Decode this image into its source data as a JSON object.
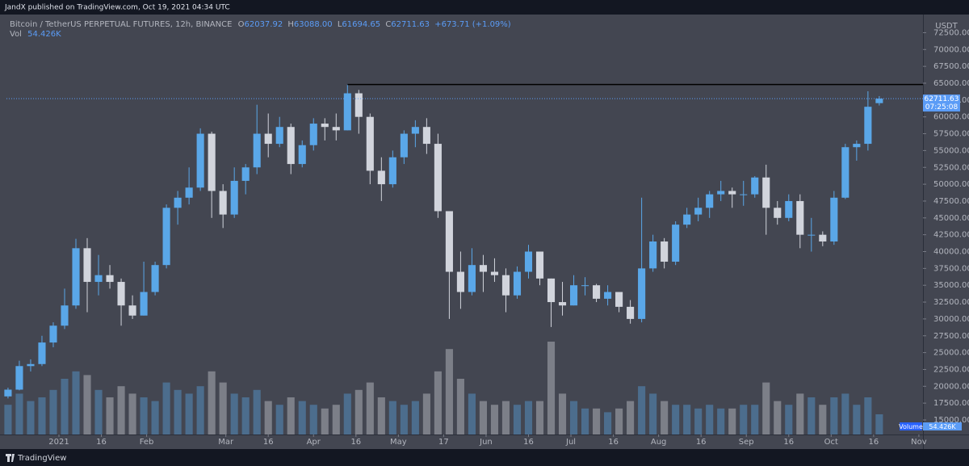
{
  "header": {
    "publisher": "JandX published on TradingView.com, Oct 19, 2021 04:34 UTC"
  },
  "footer": {
    "brand": "TradingView"
  },
  "chart_data": {
    "type": "candlestick",
    "title": "Bitcoin / TetherUS PERPETUAL FUTURES, 12h, BINANCE",
    "ohlc_legend": [
      {
        "label": "O",
        "text": "62037.92"
      },
      {
        "label": "H",
        "text": "63088.00"
      },
      {
        "label": "L",
        "text": "61694.65"
      },
      {
        "label": "C",
        "text": "62711.63"
      }
    ],
    "change": "+673.71 (+1.09%)",
    "volume_legend": {
      "label": "Vol",
      "text": "54.426K"
    },
    "x": [
      -18,
      -14,
      -10,
      -6,
      -2,
      2,
      6,
      10,
      14,
      18,
      22,
      26,
      30,
      34,
      38,
      42,
      46,
      50,
      54,
      58,
      62,
      66,
      70,
      74,
      78,
      82,
      86,
      90,
      94,
      98,
      102,
      106,
      110,
      114,
      118,
      122,
      126,
      130,
      134,
      138,
      142,
      146,
      150,
      154,
      158,
      162,
      166,
      170,
      174,
      178,
      182,
      186,
      190,
      194,
      198,
      202,
      206,
      210,
      214,
      218,
      222,
      226,
      230,
      234,
      238,
      242,
      246,
      250,
      254,
      258,
      262,
      266,
      270,
      274,
      278,
      282,
      286,
      290
    ],
    "open": [
      18500,
      19500,
      23000,
      23300,
      26500,
      29000,
      32000,
      40500,
      35500,
      36500,
      35500,
      32000,
      30500,
      34000,
      38000,
      46500,
      48000,
      49500,
      57500,
      49000,
      45500,
      50500,
      52500,
      57500,
      56000,
      58500,
      53000,
      55800,
      59000,
      58500,
      58000,
      63500,
      60000,
      52000,
      50000,
      54000,
      57500,
      58500,
      56000,
      46000,
      37000,
      34000,
      38000,
      37000,
      36500,
      33500,
      37000,
      40000,
      36000,
      32500,
      32000,
      35000,
      35000,
      33000,
      34000,
      31800,
      30000,
      37500,
      41500,
      38500,
      44000,
      45500,
      46500,
      48500,
      49000,
      48500,
      48500,
      51000,
      46500,
      45000,
      47500,
      42500,
      42500,
      41500,
      48000,
      55500,
      56000,
      62037.92
    ],
    "high": [
      19800,
      23800,
      24000,
      27500,
      29500,
      34500,
      41900,
      42000,
      39500,
      38000,
      36000,
      33500,
      38500,
      38500,
      47000,
      49000,
      52500,
      58300,
      57800,
      50000,
      52500,
      53000,
      61800,
      60500,
      60000,
      59000,
      56500,
      59800,
      59800,
      60500,
      64800,
      64000,
      60500,
      54000,
      55000,
      58000,
      59500,
      59800,
      57500,
      46000,
      40000,
      40500,
      39500,
      39000,
      37500,
      37800,
      41000,
      39500,
      36000,
      35500,
      36500,
      36200,
      35200,
      35000,
      33500,
      32800,
      48000,
      42500,
      42000,
      44500,
      46500,
      48000,
      49000,
      50500,
      49500,
      50500,
      51200,
      52900,
      47500,
      48500,
      48500,
      45000,
      43000,
      49000,
      56000,
      56500,
      63800,
      63088.0
    ],
    "low": [
      18200,
      19400,
      22200,
      23000,
      25800,
      28500,
      31500,
      31000,
      33500,
      34500,
      29000,
      30000,
      30500,
      33500,
      37500,
      44000,
      47000,
      49000,
      45000,
      43500,
      45000,
      48500,
      51500,
      54000,
      55500,
      51500,
      52500,
      55000,
      56500,
      56500,
      58000,
      57500,
      50000,
      47500,
      49500,
      53000,
      55500,
      54500,
      45000,
      30000,
      31500,
      33500,
      34000,
      35500,
      31000,
      33000,
      36000,
      35000,
      28800,
      30500,
      32000,
      33500,
      32500,
      32000,
      31000,
      29300,
      29500,
      37000,
      37500,
      38000,
      43500,
      44500,
      45000,
      47500,
      46500,
      46800,
      48000,
      42500,
      44000,
      44500,
      40500,
      40000,
      40800,
      41000,
      47800,
      53500,
      55000,
      61694.65
    ],
    "close": [
      19500,
      23000,
      23300,
      26500,
      29000,
      32000,
      40500,
      35500,
      36500,
      35500,
      32000,
      30500,
      34000,
      38000,
      46500,
      48000,
      49500,
      57500,
      49000,
      45500,
      50500,
      52500,
      57500,
      56000,
      58500,
      53000,
      55800,
      59000,
      58500,
      58000,
      63500,
      60000,
      52000,
      50000,
      54000,
      57500,
      58500,
      56000,
      46000,
      37000,
      34000,
      38000,
      37000,
      36500,
      33500,
      37000,
      40000,
      36000,
      32500,
      32000,
      35000,
      35000,
      33000,
      34000,
      31800,
      30000,
      37500,
      41500,
      38500,
      44000,
      45500,
      46500,
      48500,
      49000,
      48500,
      48500,
      51000,
      46500,
      45000,
      47500,
      42500,
      42500,
      41500,
      48000,
      55500,
      56000,
      61500,
      62711.63
    ],
    "volume": [
      80,
      110,
      90,
      100,
      120,
      150,
      170,
      160,
      120,
      100,
      130,
      110,
      100,
      90,
      140,
      120,
      110,
      130,
      170,
      140,
      110,
      100,
      120,
      90,
      80,
      100,
      90,
      80,
      70,
      80,
      110,
      120,
      140,
      100,
      90,
      80,
      90,
      110,
      170,
      230,
      150,
      110,
      90,
      80,
      90,
      80,
      90,
      90,
      250,
      110,
      90,
      70,
      70,
      60,
      70,
      90,
      130,
      110,
      90,
      80,
      80,
      70,
      80,
      70,
      70,
      80,
      80,
      140,
      90,
      80,
      110,
      100,
      80,
      100,
      110,
      80,
      100,
      54.426
    ],
    "up_color": "#5aa7e8",
    "down_color": "#d1d4dc",
    "xlim": [
      -18.55,
      305.45
    ],
    "xticks": [
      {
        "value": 0,
        "label": "2021"
      },
      {
        "value": 15,
        "label": "16"
      },
      {
        "value": 31,
        "label": "Feb"
      },
      {
        "value": 59,
        "label": "Mar"
      },
      {
        "value": 74,
        "label": "16"
      },
      {
        "value": 90,
        "label": "Apr"
      },
      {
        "value": 105,
        "label": "16"
      },
      {
        "value": 120,
        "label": "May"
      },
      {
        "value": 136,
        "label": "17"
      },
      {
        "value": 151,
        "label": "Jun"
      },
      {
        "value": 166,
        "label": "16"
      },
      {
        "value": 181,
        "label": "Jul"
      },
      {
        "value": 196,
        "label": "16"
      },
      {
        "value": 212,
        "label": "Aug"
      },
      {
        "value": 227,
        "label": "16"
      },
      {
        "value": 243,
        "label": "Sep"
      },
      {
        "value": 258,
        "label": "16"
      },
      {
        "value": 273,
        "label": "Oct"
      },
      {
        "value": 288,
        "label": "16"
      },
      {
        "value": 304,
        "label": "Nov"
      }
    ],
    "ylim": [
      12842,
      75192
    ],
    "yticks": [
      {
        "value": 15000,
        "label": "15000.00"
      },
      {
        "value": 17500,
        "label": "17500.00"
      },
      {
        "value": 20000,
        "label": "20000.00"
      },
      {
        "value": 22500,
        "label": "22500.00"
      },
      {
        "value": 25000,
        "label": "25000.00"
      },
      {
        "value": 27500,
        "label": "27500.00"
      },
      {
        "value": 30000,
        "label": "30000.00"
      },
      {
        "value": 32500,
        "label": "32500.00"
      },
      {
        "value": 35000,
        "label": "35000.00"
      },
      {
        "value": 37500,
        "label": "37500.00"
      },
      {
        "value": 40000,
        "label": "40000.00"
      },
      {
        "value": 42500,
        "label": "42500.00"
      },
      {
        "value": 45000,
        "label": "45000.00"
      },
      {
        "value": 47500,
        "label": "47500.00"
      },
      {
        "value": 50000,
        "label": "50000.00"
      },
      {
        "value": 52500,
        "label": "52500.00"
      },
      {
        "value": 55000,
        "label": "55000.00"
      },
      {
        "value": 57500,
        "label": "57500.00"
      },
      {
        "value": 60000,
        "label": "60000.00"
      },
      {
        "value": 62500,
        "label": "62500.00"
      },
      {
        "value": 65000,
        "label": "65000.00"
      },
      {
        "value": 67500,
        "label": "67500.00"
      },
      {
        "value": 70000,
        "label": "70000.00"
      },
      {
        "value": 72500,
        "label": "72500.00"
      }
    ],
    "y_unit": "USDT",
    "volume_ylim": [
      0,
      500
    ],
    "last_price": {
      "label": "62711.63",
      "countdown": "07:25:08"
    },
    "volume_tag": {
      "label": "Volume",
      "text": "54.426K"
    },
    "hline": {
      "value": 64800,
      "x_from": 102,
      "color": "#000000"
    }
  }
}
